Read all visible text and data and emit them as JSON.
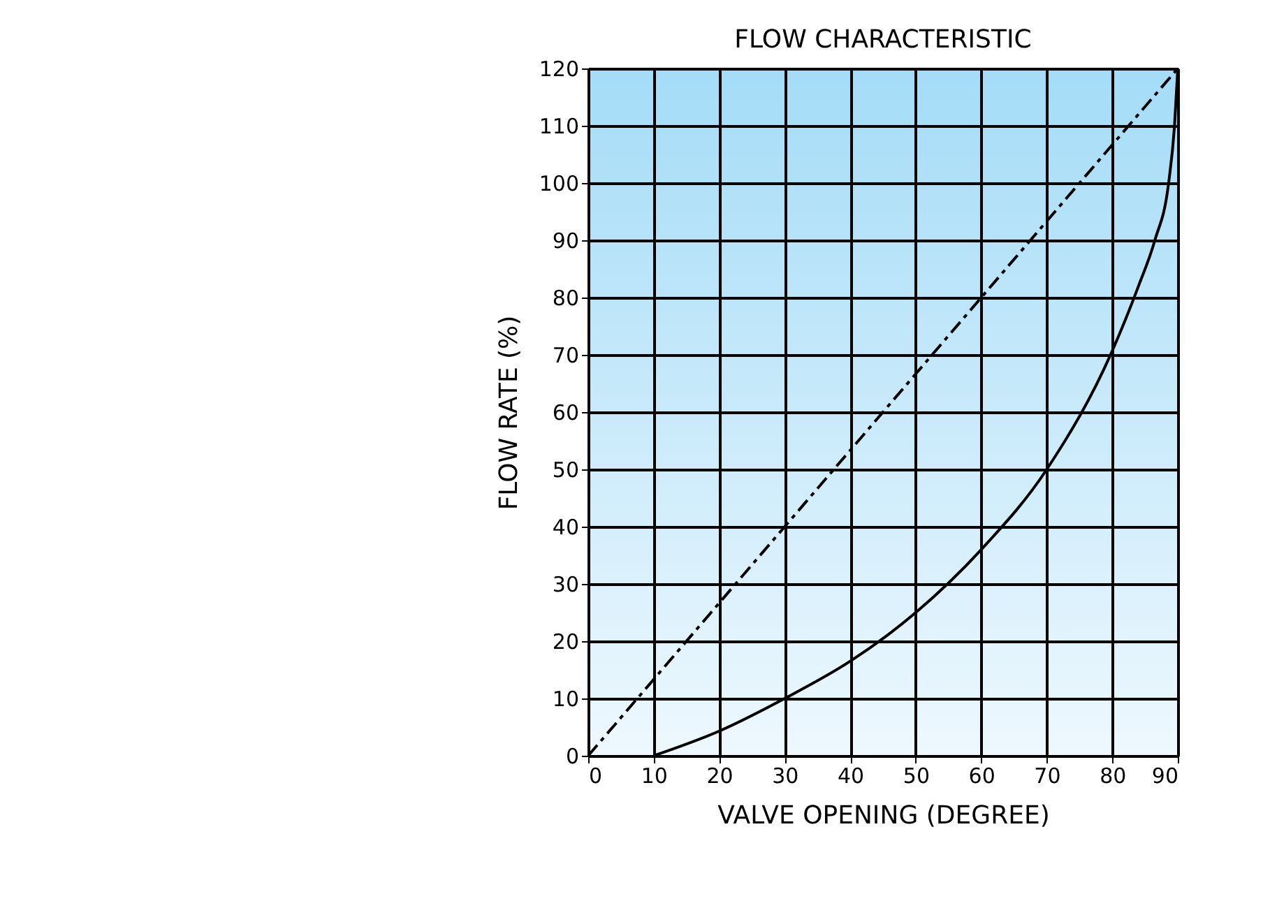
{
  "chart_data": {
    "type": "line",
    "title": "FLOW CHARACTERISTIC",
    "xlabel": "VALVE OPENING (DEGREE)",
    "ylabel": "FLOW RATE (%)",
    "xlim": [
      0,
      90
    ],
    "xticks": [
      0,
      10,
      20,
      30,
      40,
      50,
      60,
      70,
      80,
      90
    ],
    "ylim": [
      0,
      120
    ],
    "yticks": [
      0,
      10,
      20,
      30,
      40,
      50,
      60,
      70,
      80,
      90,
      100,
      110,
      120
    ],
    "grid": true,
    "marker": "none",
    "series": [
      {
        "color": "#000000",
        "line_style": "dashed",
        "x": [
          0,
          90
        ],
        "values": [
          0,
          120
        ]
      },
      {
        "color": "#000000",
        "line_style": "solid",
        "x": [
          10,
          20,
          30,
          40,
          50,
          60,
          70,
          80,
          84,
          86.5,
          88.6,
          89.5,
          90
        ],
        "values": [
          0,
          4.3,
          10,
          16.5,
          25,
          36,
          50,
          70.7,
          82,
          90,
          100,
          110,
          120
        ]
      }
    ]
  }
}
